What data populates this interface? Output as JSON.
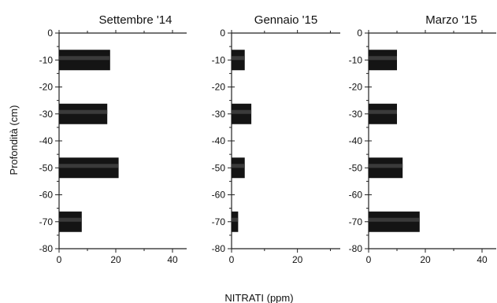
{
  "chart_data": [
    {
      "type": "bar",
      "orientation": "horizontal",
      "title": "Settembre '14",
      "categories": [
        -10,
        -30,
        -50,
        -70
      ],
      "values": [
        18,
        17,
        21,
        8
      ],
      "xlim": [
        0,
        45
      ],
      "ylim": [
        -80,
        0
      ],
      "xticks": [
        0,
        20,
        40
      ],
      "yticks": [
        0,
        -10,
        -20,
        -30,
        -40,
        -50,
        -60,
        -70,
        -80
      ]
    },
    {
      "type": "bar",
      "orientation": "horizontal",
      "title": "Gennaio '15",
      "categories": [
        -10,
        -30,
        -50,
        -70
      ],
      "values": [
        4,
        6,
        4,
        2
      ],
      "xlim": [
        0,
        33
      ],
      "ylim": [
        -80,
        0
      ],
      "xticks": [
        0,
        20
      ],
      "yticks": [
        0,
        -10,
        -20,
        -30,
        -40,
        -50,
        -60,
        -70,
        -80
      ]
    },
    {
      "type": "bar",
      "orientation": "horizontal",
      "title": "Marzo '15",
      "categories": [
        -10,
        -30,
        -50,
        -70
      ],
      "values": [
        10,
        10,
        12,
        18
      ],
      "xlim": [
        0,
        45
      ],
      "ylim": [
        -80,
        0
      ],
      "xticks": [
        0,
        20,
        40
      ],
      "yticks": [
        0,
        -10,
        -20,
        -30,
        -40,
        -50,
        -60,
        -70,
        -80
      ]
    }
  ],
  "shared": {
    "ylabel": "Profondità (cm)",
    "xlabel": "NITRATI (ppm)"
  }
}
